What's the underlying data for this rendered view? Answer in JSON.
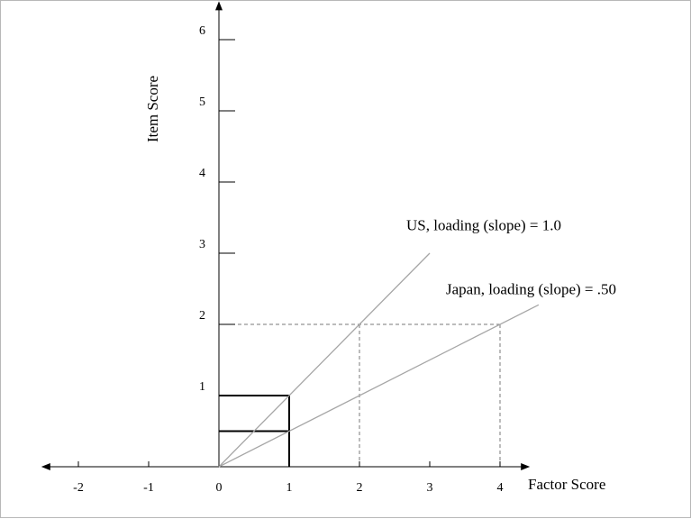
{
  "chart_data": {
    "type": "line",
    "xlabel": "Factor Score",
    "ylabel": "Item Score",
    "x_ticks": [
      -2,
      -1,
      0,
      1,
      2,
      3,
      4
    ],
    "x_tick_labels": [
      "-2",
      "-1",
      "0",
      "1",
      "2",
      "3",
      "4"
    ],
    "y_ticks": [
      1,
      2,
      3,
      4,
      5,
      6
    ],
    "y_tick_labels": [
      "1",
      "2",
      "3",
      "4",
      "5",
      "6"
    ],
    "xlim": [
      -2.4,
      4.4
    ],
    "ylim": [
      0,
      6.4
    ],
    "grid": false,
    "series": [
      {
        "name": "US, loading (slope) = 1.0",
        "slope": 1.0,
        "x": [
          0,
          3.0
        ],
        "y": [
          0,
          3.0
        ],
        "color": "#a6a6a6"
      },
      {
        "name": "Japan, loading (slope) = .50",
        "slope": 0.5,
        "x": [
          0,
          4.55
        ],
        "y": [
          0,
          2.275
        ],
        "color": "#a6a6a6"
      }
    ],
    "reference_lines": {
      "dashed": [
        {
          "from": [
            0,
            2
          ],
          "to": [
            4,
            2
          ]
        },
        {
          "from": [
            2,
            0
          ],
          "to": [
            2,
            2
          ]
        },
        {
          "from": [
            4,
            0
          ],
          "to": [
            4,
            2
          ]
        }
      ],
      "solid": [
        {
          "from": [
            0,
            1
          ],
          "to": [
            1,
            1
          ]
        },
        {
          "from": [
            0,
            0.5
          ],
          "to": [
            1,
            0.5
          ]
        },
        {
          "from": [
            1,
            0
          ],
          "to": [
            1,
            1
          ]
        }
      ]
    },
    "annotations": [
      {
        "text": "US, loading (slope) = 1.0",
        "x": 2.7,
        "y": 3.4
      },
      {
        "text": "Japan, loading (slope) = .50",
        "x": 3.2,
        "y": 2.5
      }
    ]
  }
}
